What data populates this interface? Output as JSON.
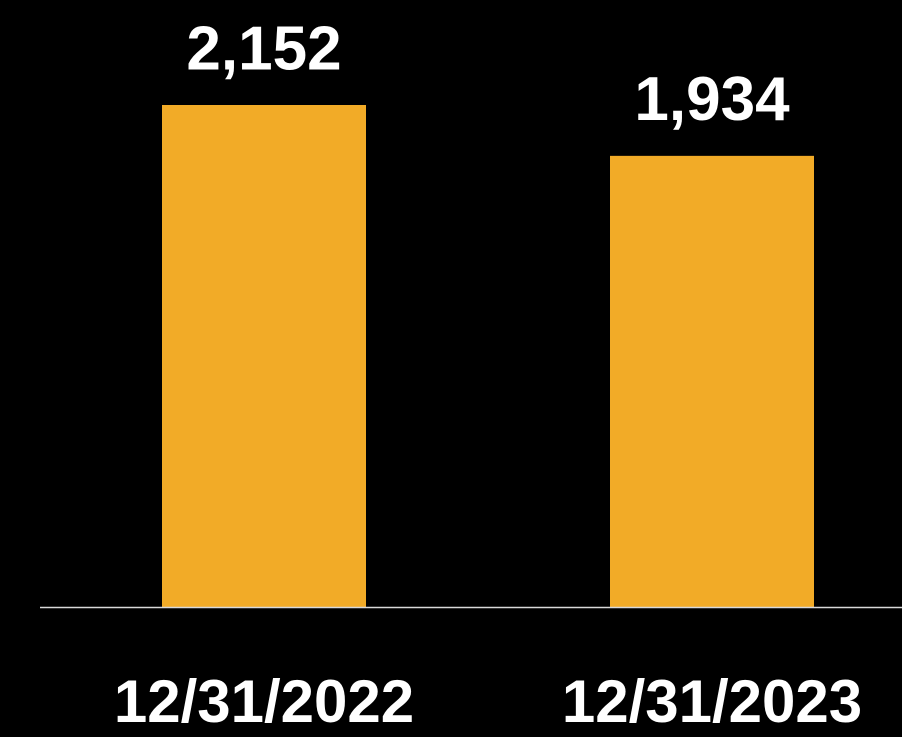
{
  "chart_data": {
    "type": "bar",
    "categories": [
      "12/31/2022",
      "12/31/2023"
    ],
    "values": [
      2152,
      1934
    ],
    "value_labels": [
      "2,152",
      "1,934"
    ],
    "color": "#f2ab27"
  }
}
